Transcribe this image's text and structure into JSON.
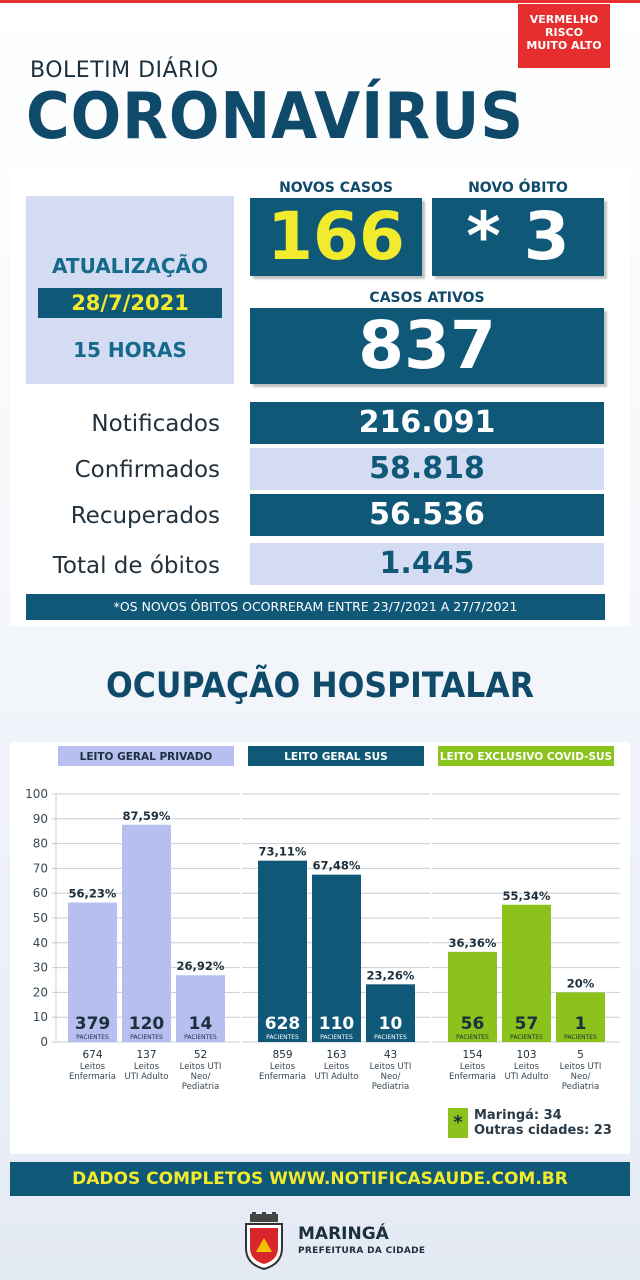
{
  "risk": {
    "line1": "VERMELHO",
    "line2": "RISCO",
    "line3": "MUITO ALTO"
  },
  "header": {
    "subtitle": "BOLETIM DIÁRIO",
    "title": "CORONAVÍRUS"
  },
  "update": {
    "label": "ATUALIZAÇÃO",
    "date": "28/7/2021",
    "hour": "15 HORAS"
  },
  "novos_casos": {
    "label": "NOVOS CASOS",
    "value": "166"
  },
  "novo_obito": {
    "label": "NOVO ÓBITO",
    "value": "* 3"
  },
  "casos_ativos": {
    "label": "CASOS ATIVOS",
    "value": "837"
  },
  "stats": [
    {
      "label": "Notificados",
      "value": "216.091"
    },
    {
      "label": "Confirmados",
      "value": "58.818"
    },
    {
      "label": "Recuperados",
      "value": "56.536"
    },
    {
      "label": "Total de óbitos",
      "value": "1.445"
    }
  ],
  "note": "*OS NOVOS ÓBITOS OCORRERAM ENTRE 23/7/2021 A 27/7/2021",
  "hospital_title": "OCUPAÇÃO HOSPITALAR",
  "colors": {
    "dark_blue": "#0f5878",
    "light_blue": "#b6bff0",
    "green": "#8bc21b",
    "yellow": "#f2ea2c",
    "red": "#e62e2e"
  },
  "chart_data": {
    "type": "bar",
    "y_ticks": [
      0,
      10,
      20,
      30,
      40,
      50,
      60,
      70,
      80,
      90,
      100
    ],
    "ylim": [
      0,
      100
    ],
    "grid": true,
    "unit_label": "PACIENTES",
    "groups": [
      {
        "name": "LEITO GERAL PRIVADO",
        "color": "#b6bff0",
        "bars": [
          {
            "pct": 56.23,
            "pct_label": "56,23%",
            "patients": "379",
            "beds": "674",
            "type_lines": [
              "Leitos",
              "Enfermaria"
            ]
          },
          {
            "pct": 87.59,
            "pct_label": "87,59%",
            "patients": "120",
            "beds": "137",
            "type_lines": [
              "Leitos",
              "UTI Adulto"
            ]
          },
          {
            "pct": 26.92,
            "pct_label": "26,92%",
            "patients": "14",
            "beds": "52",
            "type_lines": [
              "Leitos UTI",
              "Neo/",
              "Pediatria"
            ]
          }
        ]
      },
      {
        "name": "LEITO GERAL SUS",
        "color": "#0f5878",
        "bars": [
          {
            "pct": 73.11,
            "pct_label": "73,11%",
            "patients": "628",
            "beds": "859",
            "type_lines": [
              "Leitos",
              "Enfermaria"
            ]
          },
          {
            "pct": 67.48,
            "pct_label": "67,48%",
            "patients": "110",
            "beds": "163",
            "type_lines": [
              "Leitos",
              "UTI Adulto"
            ]
          },
          {
            "pct": 23.26,
            "pct_label": "23,26%",
            "patients": "10",
            "beds": "43",
            "type_lines": [
              "Leitos UTI",
              "Neo/",
              "Pediatria"
            ]
          }
        ]
      },
      {
        "name": "LEITO EXCLUSIVO COVID-SUS",
        "color": "#8bc21b",
        "bars": [
          {
            "pct": 36.36,
            "pct_label": "36,36%",
            "patients": "56",
            "beds": "154",
            "type_lines": [
              "Leitos",
              "Enfermaria"
            ]
          },
          {
            "pct": 55.34,
            "pct_label": "55,34%",
            "patients": "57",
            "beds": "103",
            "type_lines": [
              "Leitos",
              "UTI Adulto"
            ]
          },
          {
            "pct": 20,
            "pct_label": "20%",
            "patients": "1",
            "beds": "5",
            "type_lines": [
              "Leitos UTI",
              "Neo/",
              "Pediatria"
            ]
          }
        ]
      }
    ]
  },
  "legend": {
    "symbol": "*",
    "line1": "Maringá: 34",
    "line2": "Outras cidades: 23"
  },
  "footer": "DADOS COMPLETOS  WWW.NOTIFICASAUDE.COM.BR",
  "logo": {
    "city": "MARINGÁ",
    "sub": "PREFEITURA DA CIDADE"
  }
}
